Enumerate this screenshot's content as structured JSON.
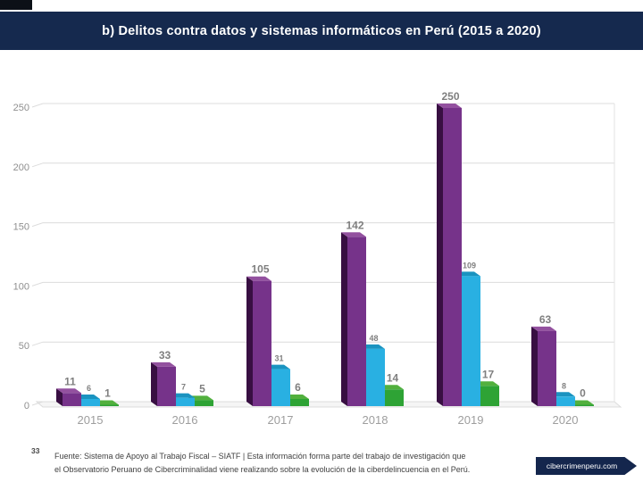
{
  "header": {
    "title": "b) Delitos contra datos y sistemas informáticos en Perú (2015 a 2020)"
  },
  "chart_data": {
    "type": "bar",
    "style": "3d-grouped-columns",
    "title": "b) Delitos contra datos y sistemas informáticos en Perú (2015 a 2020)",
    "categories": [
      "2015",
      "2016",
      "2017",
      "2018",
      "2019",
      "2020"
    ],
    "series": [
      {
        "name": "purple-series",
        "color": "#76338a",
        "side_color": "#380f42",
        "top_color": "#93519f",
        "values": [
          11,
          33,
          105,
          142,
          250,
          63
        ]
      },
      {
        "name": "cyan-series",
        "color": "#29b0e2",
        "side_color": "#0f7ba8",
        "top_color": "#1a93c0",
        "values": [
          6,
          7,
          31,
          48,
          109,
          8
        ]
      },
      {
        "name": "green-series",
        "color": "#2ea335",
        "side_color": "#155f1f",
        "top_color": "#52b03e",
        "values": [
          1,
          5,
          6,
          14,
          17,
          0
        ]
      }
    ],
    "ylim": [
      0,
      250
    ],
    "yticks": [
      0,
      50,
      100,
      150,
      200,
      250
    ],
    "grid": true,
    "legend": false,
    "value_labels": true,
    "value_label_color": "#7f7f7f",
    "x_label_color": "#9e9e9e",
    "y_label_color": "#8f8f8f",
    "grid_color": "#dcdcdc",
    "floor_fill": "#f5f5f5"
  },
  "footer": {
    "note_number": "33",
    "source_line1": "Fuente: Sistema de Apoyo al Trabajo Fiscal – SIATF | Esta información forma parte del trabajo de investigación que",
    "source_line2": "el Observatorio Peruano de Cibercriminalidad viene realizando sobre la evolución de la ciberdelincuencia en el Perú.",
    "badge_label": "cibercrimenperu.com"
  },
  "colors": {
    "title_bar": "#15294e",
    "badge": "#14264d"
  }
}
